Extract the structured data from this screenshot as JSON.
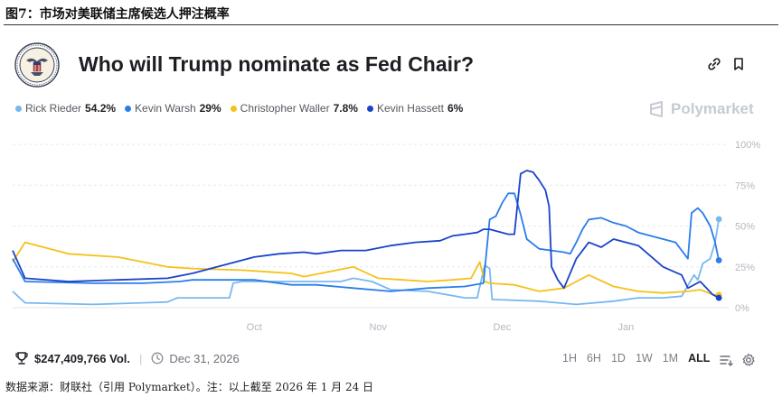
{
  "figure_caption": "图7：市场对美联储主席候选人押注概率",
  "source_note": "数据来源：财联社（引用 Polymarket）。注：以上截至 2026 年 1 月 24 日",
  "brand": "Polymarket",
  "footer": {
    "volume": "$247,409,766 Vol.",
    "end_date": "Dec 31, 2026",
    "ranges": [
      "1H",
      "6H",
      "1D",
      "1W",
      "1M",
      "ALL"
    ],
    "active_range": "ALL"
  },
  "colors": {
    "rieder": "#78b8f0",
    "warsh": "#2b7de9",
    "waller": "#f4c21b",
    "hassett": "#1a44c8",
    "grid": "#e6e9ee",
    "axis_text": "#b3b8bf"
  },
  "chart_data": {
    "type": "line",
    "title": "Who will Trump nominate as Fed Chair?",
    "xlabel": "",
    "ylabel": "",
    "ylim": [
      0,
      100
    ],
    "yticks": [
      "0%",
      "25%",
      "50%",
      "75%",
      "100%"
    ],
    "x_tick_labels": [
      "Oct",
      "Nov",
      "Dec",
      "Jan"
    ],
    "x_tick_positions": [
      0.5,
      1.5,
      2.5,
      3.5
    ],
    "x_range": [
      -1.45,
      4.3
    ],
    "series": [
      {
        "name": "Rick Rieder",
        "legend_value": "54.2%",
        "color_key": "rieder",
        "points": [
          [
            -1.45,
            10
          ],
          [
            -1.35,
            3
          ],
          [
            -0.8,
            2
          ],
          [
            -0.4,
            3
          ],
          [
            -0.2,
            3.5
          ],
          [
            -0.12,
            6
          ],
          [
            0,
            6
          ],
          [
            0.3,
            6
          ],
          [
            0.33,
            15
          ],
          [
            0.4,
            16
          ],
          [
            1.0,
            16
          ],
          [
            1.2,
            16
          ],
          [
            1.3,
            18
          ],
          [
            1.45,
            16
          ],
          [
            1.6,
            11
          ],
          [
            1.9,
            10
          ],
          [
            2.2,
            6
          ],
          [
            2.3,
            6
          ],
          [
            2.36,
            26
          ],
          [
            2.4,
            24
          ],
          [
            2.42,
            5
          ],
          [
            2.8,
            4
          ],
          [
            3.1,
            2
          ],
          [
            3.4,
            4
          ],
          [
            3.6,
            6
          ],
          [
            3.8,
            6
          ],
          [
            3.95,
            7
          ],
          [
            4.05,
            20
          ],
          [
            4.08,
            17
          ],
          [
            4.12,
            27
          ],
          [
            4.18,
            30
          ],
          [
            4.22,
            40
          ],
          [
            4.25,
            54.2
          ]
        ]
      },
      {
        "name": "Kevin Warsh",
        "legend_value": "29%",
        "color_key": "warsh",
        "points": [
          [
            -1.45,
            30
          ],
          [
            -1.35,
            16
          ],
          [
            -0.8,
            15
          ],
          [
            -0.4,
            15
          ],
          [
            -0.1,
            16
          ],
          [
            0,
            17
          ],
          [
            0.5,
            17
          ],
          [
            0.8,
            14
          ],
          [
            1.0,
            14
          ],
          [
            1.3,
            12
          ],
          [
            1.6,
            10
          ],
          [
            1.9,
            12
          ],
          [
            2.2,
            13
          ],
          [
            2.35,
            15
          ],
          [
            2.4,
            54
          ],
          [
            2.45,
            56
          ],
          [
            2.5,
            64
          ],
          [
            2.55,
            70
          ],
          [
            2.6,
            70
          ],
          [
            2.65,
            57
          ],
          [
            2.7,
            42
          ],
          [
            2.8,
            36
          ],
          [
            2.9,
            35
          ],
          [
            3.0,
            34
          ],
          [
            3.05,
            33
          ],
          [
            3.1,
            40
          ],
          [
            3.15,
            48
          ],
          [
            3.2,
            54
          ],
          [
            3.3,
            55
          ],
          [
            3.4,
            52
          ],
          [
            3.5,
            50
          ],
          [
            3.6,
            46
          ],
          [
            3.7,
            44
          ],
          [
            3.8,
            42
          ],
          [
            3.9,
            40
          ],
          [
            4.0,
            30
          ],
          [
            4.03,
            58
          ],
          [
            4.08,
            61
          ],
          [
            4.12,
            58
          ],
          [
            4.18,
            50
          ],
          [
            4.22,
            40
          ],
          [
            4.25,
            29
          ]
        ]
      },
      {
        "name": "Christopher Waller",
        "legend_value": "7.8%",
        "color_key": "waller",
        "points": [
          [
            -1.45,
            28
          ],
          [
            -1.35,
            40
          ],
          [
            -1.0,
            33
          ],
          [
            -0.6,
            31
          ],
          [
            -0.2,
            25
          ],
          [
            0,
            24
          ],
          [
            0.4,
            23
          ],
          [
            0.6,
            22
          ],
          [
            0.8,
            21
          ],
          [
            0.9,
            19
          ],
          [
            1.1,
            22
          ],
          [
            1.3,
            25
          ],
          [
            1.5,
            18
          ],
          [
            1.7,
            17
          ],
          [
            1.9,
            16
          ],
          [
            2.1,
            17
          ],
          [
            2.25,
            18
          ],
          [
            2.32,
            28
          ],
          [
            2.36,
            16
          ],
          [
            2.4,
            15
          ],
          [
            2.6,
            14
          ],
          [
            2.8,
            10
          ],
          [
            3.0,
            12
          ],
          [
            3.2,
            20
          ],
          [
            3.4,
            13
          ],
          [
            3.6,
            10
          ],
          [
            3.8,
            9
          ],
          [
            4.0,
            10
          ],
          [
            4.1,
            11
          ],
          [
            4.2,
            8
          ],
          [
            4.25,
            7.8
          ]
        ]
      },
      {
        "name": "Kevin Hassett",
        "legend_value": "6%",
        "color_key": "hassett",
        "points": [
          [
            -1.45,
            35
          ],
          [
            -1.35,
            18
          ],
          [
            -1.0,
            16
          ],
          [
            -0.6,
            17
          ],
          [
            -0.2,
            18
          ],
          [
            0,
            21
          ],
          [
            0.3,
            27
          ],
          [
            0.5,
            31
          ],
          [
            0.7,
            33
          ],
          [
            0.9,
            34
          ],
          [
            1.0,
            33
          ],
          [
            1.2,
            35
          ],
          [
            1.4,
            35
          ],
          [
            1.6,
            38
          ],
          [
            1.8,
            40
          ],
          [
            2.0,
            41
          ],
          [
            2.1,
            44
          ],
          [
            2.2,
            45
          ],
          [
            2.3,
            46
          ],
          [
            2.35,
            48
          ],
          [
            2.4,
            48
          ],
          [
            2.55,
            45
          ],
          [
            2.6,
            45
          ],
          [
            2.65,
            82
          ],
          [
            2.7,
            84
          ],
          [
            2.75,
            83
          ],
          [
            2.8,
            78
          ],
          [
            2.85,
            72
          ],
          [
            2.88,
            62
          ],
          [
            2.9,
            25
          ],
          [
            2.95,
            17
          ],
          [
            3.0,
            12
          ],
          [
            3.1,
            30
          ],
          [
            3.2,
            40
          ],
          [
            3.3,
            37
          ],
          [
            3.4,
            42
          ],
          [
            3.5,
            40
          ],
          [
            3.6,
            38
          ],
          [
            3.8,
            25
          ],
          [
            3.95,
            20
          ],
          [
            4.0,
            12
          ],
          [
            4.1,
            16
          ],
          [
            4.2,
            8
          ],
          [
            4.25,
            6
          ]
        ]
      }
    ]
  }
}
